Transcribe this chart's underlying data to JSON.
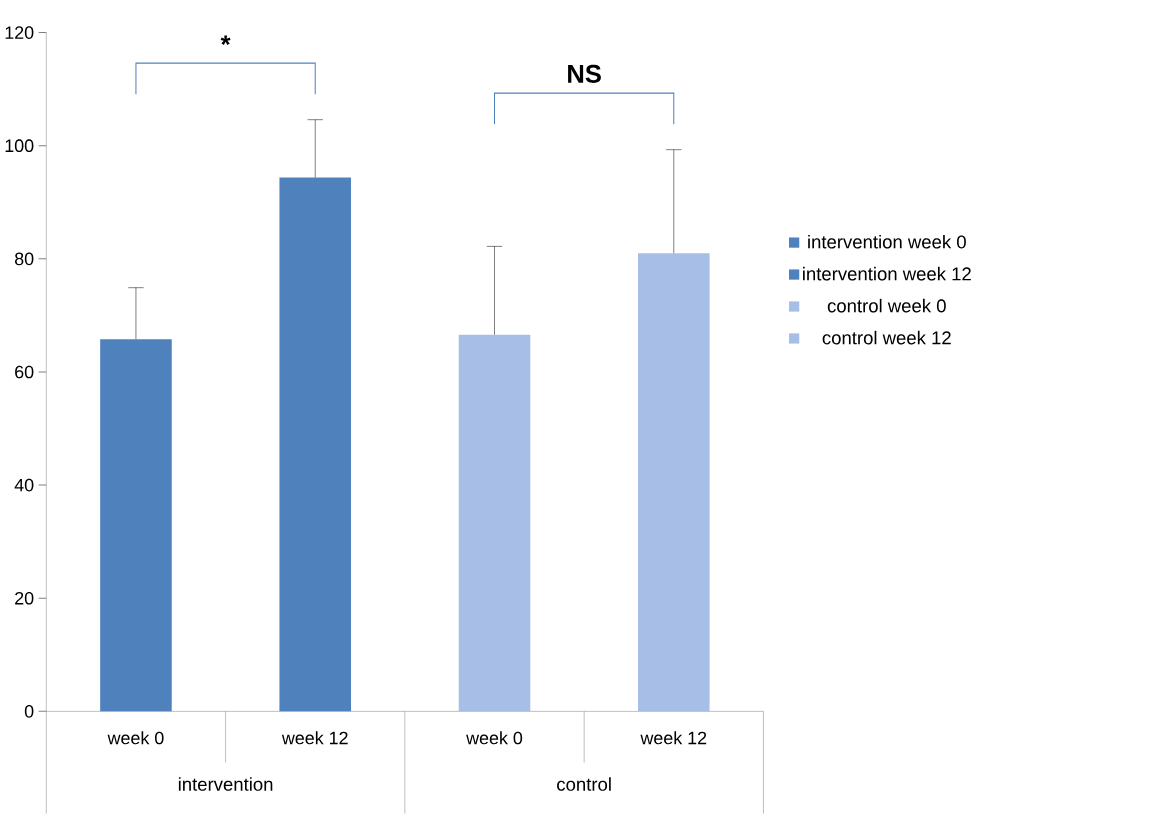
{
  "chart_data": {
    "type": "bar",
    "categories": [
      "week 0",
      "week 12",
      "week 0",
      "week 12"
    ],
    "series": [
      {
        "name": "intervention week 0",
        "color": "#4f81bd",
        "values": [
          65.8,
          null,
          null,
          null
        ],
        "errors": [
          [
            65.8,
            74.9
          ],
          null,
          null,
          null
        ]
      },
      {
        "name": "intervention week 12",
        "color": "#4f81bd",
        "values": [
          null,
          94.4,
          null,
          null
        ],
        "errors": [
          null,
          [
            94.4,
            104.6
          ],
          null,
          null
        ]
      },
      {
        "name": "control week 0",
        "color": "#a7bee6",
        "values": [
          null,
          null,
          66.6,
          null
        ],
        "errors": [
          null,
          null,
          [
            66.6,
            82.2
          ],
          null
        ]
      },
      {
        "name": "control week 12",
        "color": "#a7bee6",
        "values": [
          null,
          null,
          null,
          81.0
        ],
        "errors": [
          null,
          null,
          null,
          [
            81.0,
            99.3
          ]
        ]
      }
    ],
    "ylim": [
      0,
      120
    ],
    "yticks": [
      0,
      20,
      40,
      60,
      80,
      100,
      120
    ],
    "legend": "right",
    "annotations": [
      "*",
      "NS",
      "intervention",
      "control"
    ]
  }
}
